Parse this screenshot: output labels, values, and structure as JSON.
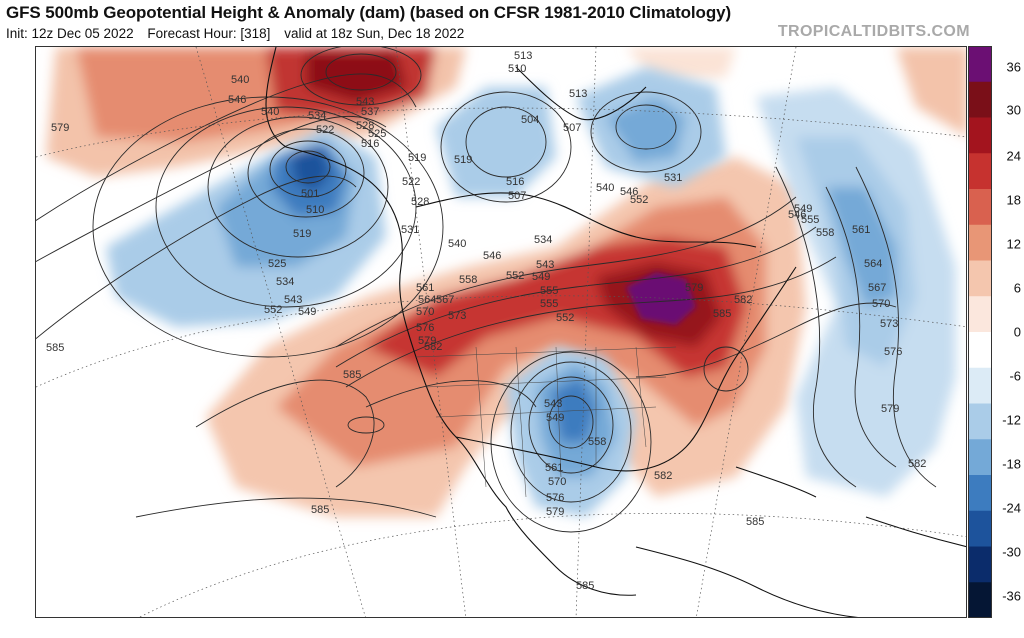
{
  "header": {
    "title": "GFS 500mb Geopotential Height & Anomaly (dam) (based on CFSR 1981-2010 Climatology)",
    "init": "Init: 12z Dec 05 2022",
    "forecast_hour": "Forecast Hour: [318]",
    "valid": "valid at 18z Sun, Dec 18 2022",
    "watermark": "TROPICALTIDBITS.COM"
  },
  "colorbar": {
    "labels": [
      "36",
      "30",
      "24",
      "18",
      "12",
      "6",
      "0",
      "-6",
      "-12",
      "-18",
      "-24",
      "-30",
      "-36"
    ],
    "colors": [
      "#6b0f73",
      "#7a0f18",
      "#a3141e",
      "#c6322f",
      "#d9614f",
      "#e89676",
      "#f4c6ae",
      "#fbe7dd",
      "#ffffff",
      "#dcebf6",
      "#aacce8",
      "#74a9d7",
      "#3d7cbf",
      "#1d539c",
      "#0b2c6b",
      "#051634"
    ]
  },
  "map": {
    "height_contour_labels": [
      {
        "text": "540"
      },
      {
        "text": "546"
      },
      {
        "text": "540"
      },
      {
        "text": "579"
      },
      {
        "text": "534"
      },
      {
        "text": "522"
      },
      {
        "text": "528"
      },
      {
        "text": "525"
      },
      {
        "text": "543"
      },
      {
        "text": "537"
      },
      {
        "text": "516"
      },
      {
        "text": "501"
      },
      {
        "text": "510"
      },
      {
        "text": "519"
      },
      {
        "text": "525"
      },
      {
        "text": "534"
      },
      {
        "text": "543"
      },
      {
        "text": "549"
      },
      {
        "text": "552"
      },
      {
        "text": "585"
      },
      {
        "text": "513"
      },
      {
        "text": "510"
      },
      {
        "text": "504"
      },
      {
        "text": "507"
      },
      {
        "text": "513"
      },
      {
        "text": "519"
      },
      {
        "text": "516"
      },
      {
        "text": "507"
      },
      {
        "text": "522"
      },
      {
        "text": "519"
      },
      {
        "text": "528"
      },
      {
        "text": "531"
      },
      {
        "text": "540"
      },
      {
        "text": "546"
      },
      {
        "text": "552"
      },
      {
        "text": "558"
      },
      {
        "text": "561"
      },
      {
        "text": "564"
      },
      {
        "text": "567"
      },
      {
        "text": "570"
      },
      {
        "text": "573"
      },
      {
        "text": "576"
      },
      {
        "text": "579"
      },
      {
        "text": "582"
      },
      {
        "text": "585"
      },
      {
        "text": "534"
      },
      {
        "text": "543"
      },
      {
        "text": "549"
      },
      {
        "text": "555"
      },
      {
        "text": "555"
      },
      {
        "text": "552"
      },
      {
        "text": "531"
      },
      {
        "text": "540"
      },
      {
        "text": "546"
      },
      {
        "text": "552"
      },
      {
        "text": "579"
      },
      {
        "text": "582"
      },
      {
        "text": "585"
      },
      {
        "text": "543"
      },
      {
        "text": "549"
      },
      {
        "text": "558"
      },
      {
        "text": "561"
      },
      {
        "text": "570"
      },
      {
        "text": "576"
      },
      {
        "text": "579"
      },
      {
        "text": "582"
      },
      {
        "text": "546"
      },
      {
        "text": "549"
      },
      {
        "text": "555"
      },
      {
        "text": "558"
      },
      {
        "text": "561"
      },
      {
        "text": "564"
      },
      {
        "text": "567"
      },
      {
        "text": "570"
      },
      {
        "text": "573"
      },
      {
        "text": "576"
      },
      {
        "text": "579"
      },
      {
        "text": "582"
      },
      {
        "text": "585"
      },
      {
        "text": "585"
      },
      {
        "text": "585"
      }
    ]
  }
}
